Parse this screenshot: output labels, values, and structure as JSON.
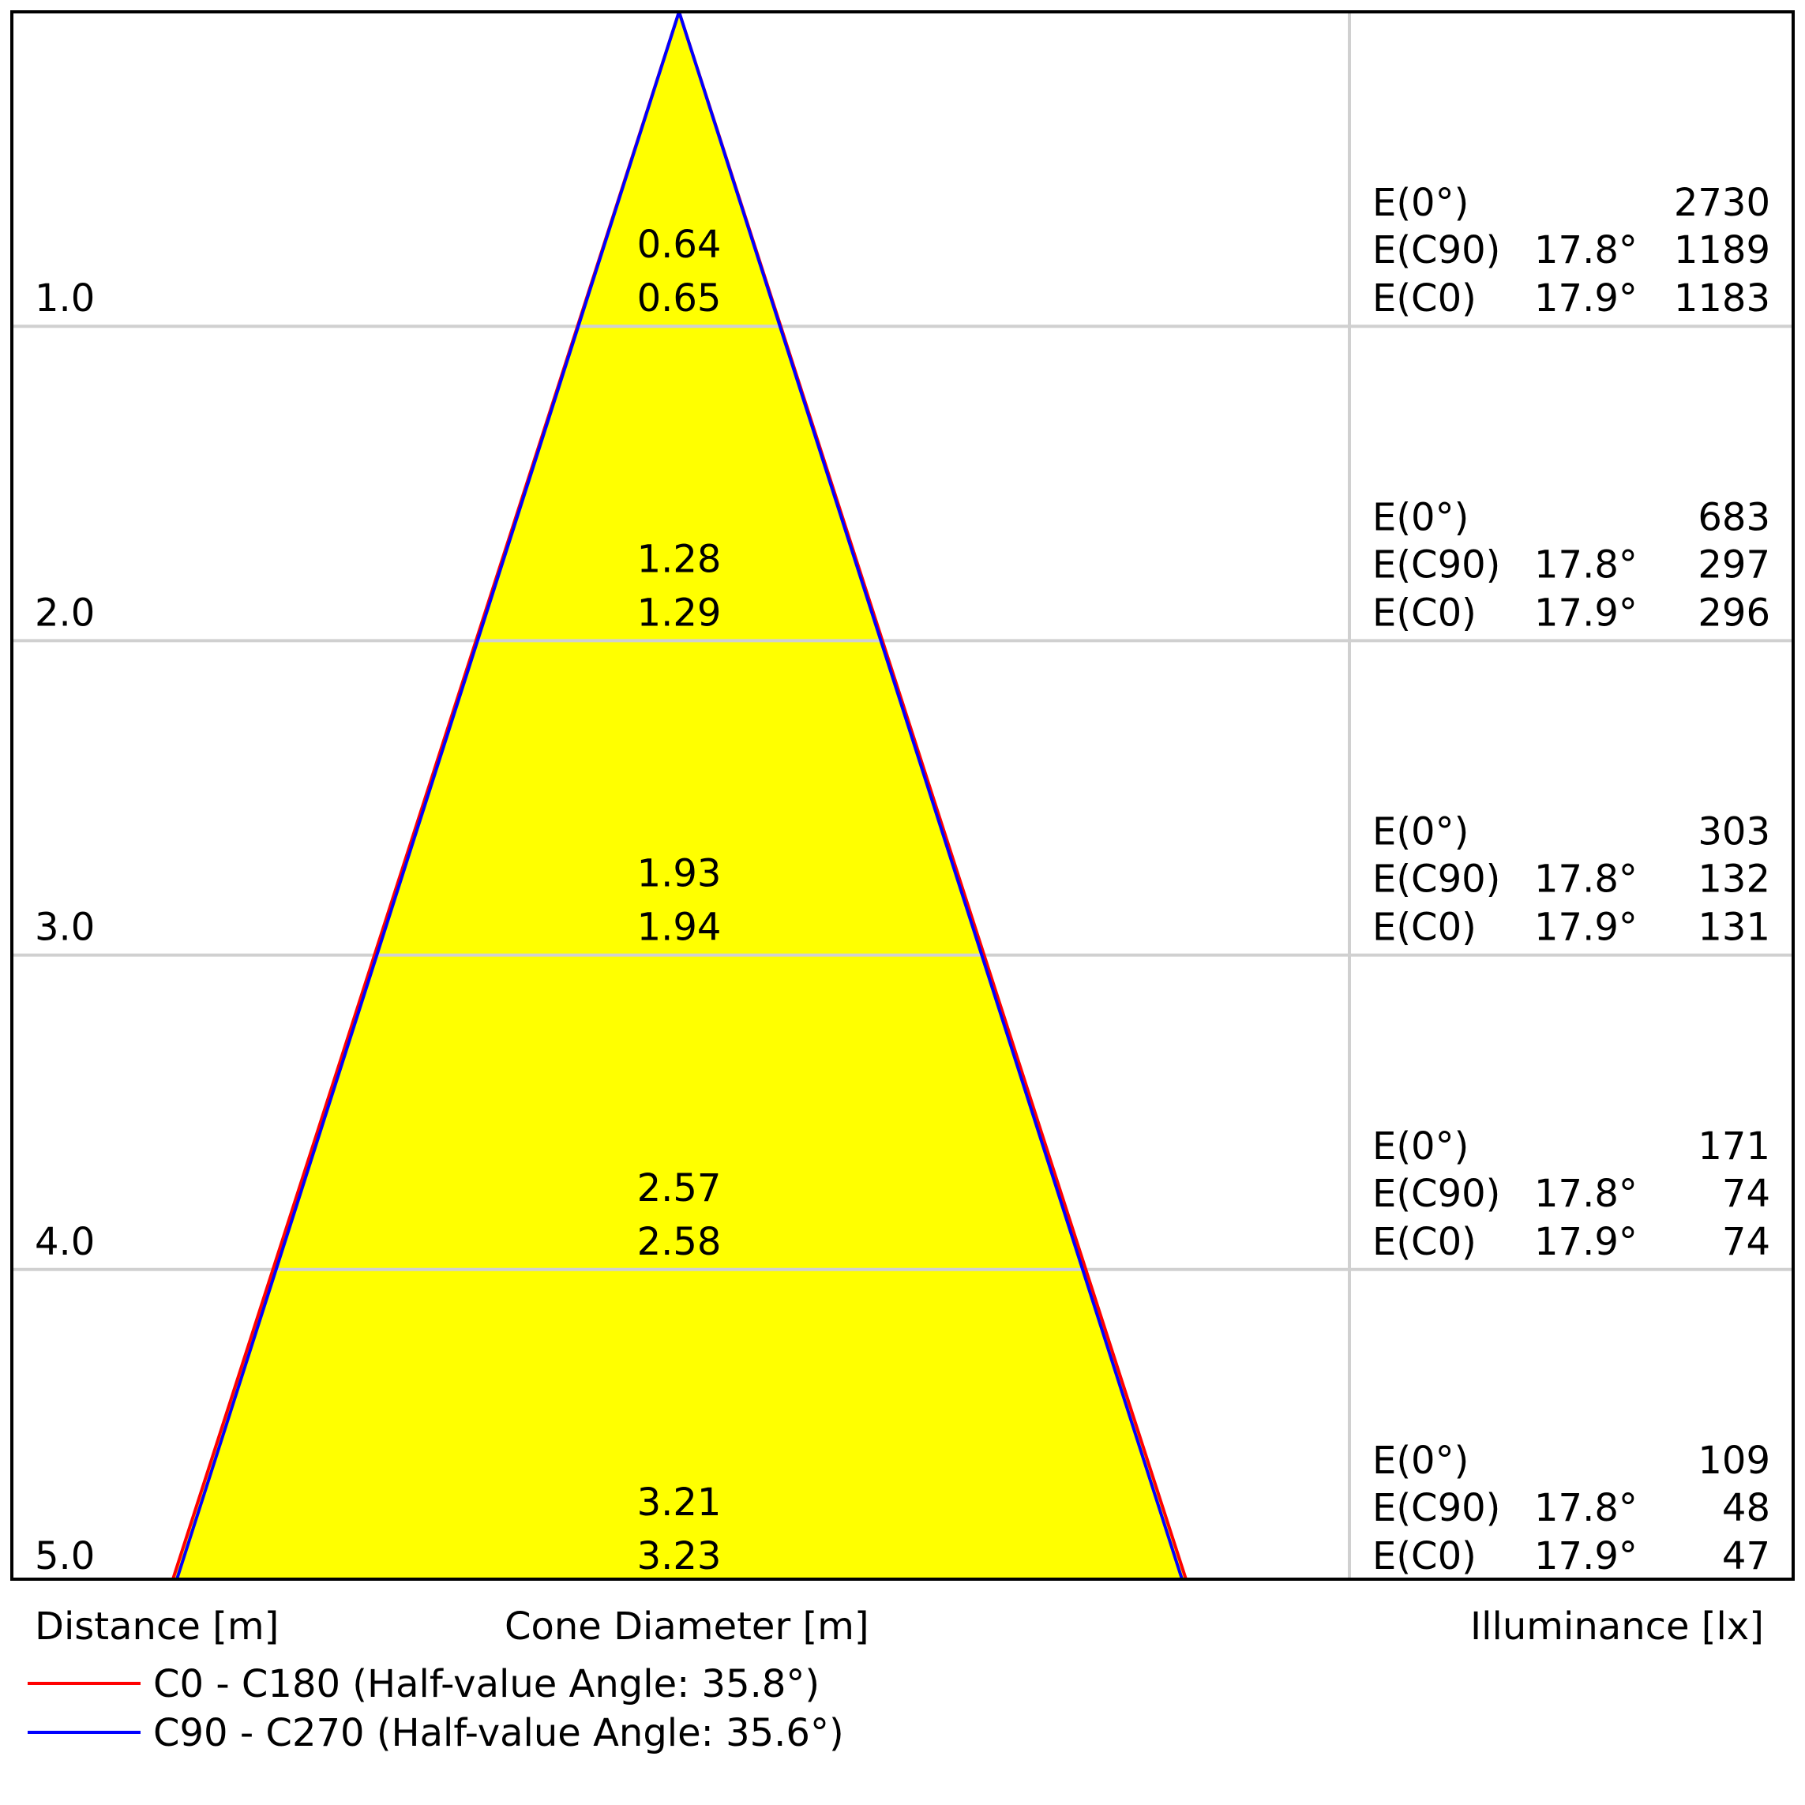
{
  "rows": [
    {
      "distance": "1.0",
      "diam_c0": "0.64",
      "diam_c90": "0.65",
      "e0": "2730",
      "ec90_angle": "17.8°",
      "ec90": "1189",
      "ec0_angle": "17.9°",
      "ec0": "1183"
    },
    {
      "distance": "2.0",
      "diam_c0": "1.28",
      "diam_c90": "1.29",
      "e0": "683",
      "ec90_angle": "17.8°",
      "ec90": "297",
      "ec0_angle": "17.9°",
      "ec0": "296"
    },
    {
      "distance": "3.0",
      "diam_c0": "1.93",
      "diam_c90": "1.94",
      "e0": "303",
      "ec90_angle": "17.8°",
      "ec90": "132",
      "ec0_angle": "17.9°",
      "ec0": "131"
    },
    {
      "distance": "4.0",
      "diam_c0": "2.57",
      "diam_c90": "2.58",
      "e0": "171",
      "ec90_angle": "17.8°",
      "ec90": "74",
      "ec0_angle": "17.9°",
      "ec0": "74"
    },
    {
      "distance": "5.0",
      "diam_c0": "3.21",
      "diam_c90": "3.23",
      "e0": "109",
      "ec90_angle": "17.8°",
      "ec90": "48",
      "ec0_angle": "17.9°",
      "ec0": "47"
    }
  ],
  "labels": {
    "e0": "E(0°)",
    "ec90": "E(C90)",
    "ec0": "E(C0)"
  },
  "axis": {
    "distance": "Distance [m]",
    "diameter": "Cone Diameter [m]",
    "illuminance": "Illuminance [lx]"
  },
  "legend": [
    {
      "text": "C0 - C180 (Half-value Angle: 35.8°)",
      "color": "#ff0000"
    },
    {
      "text": "C90 - C270 (Half-value Angle: 35.6°)",
      "color": "#0000ff"
    }
  ],
  "colors": {
    "cone_fill": "#ffff00",
    "grid": "#d0d0d0",
    "frame": "#000000"
  }
}
